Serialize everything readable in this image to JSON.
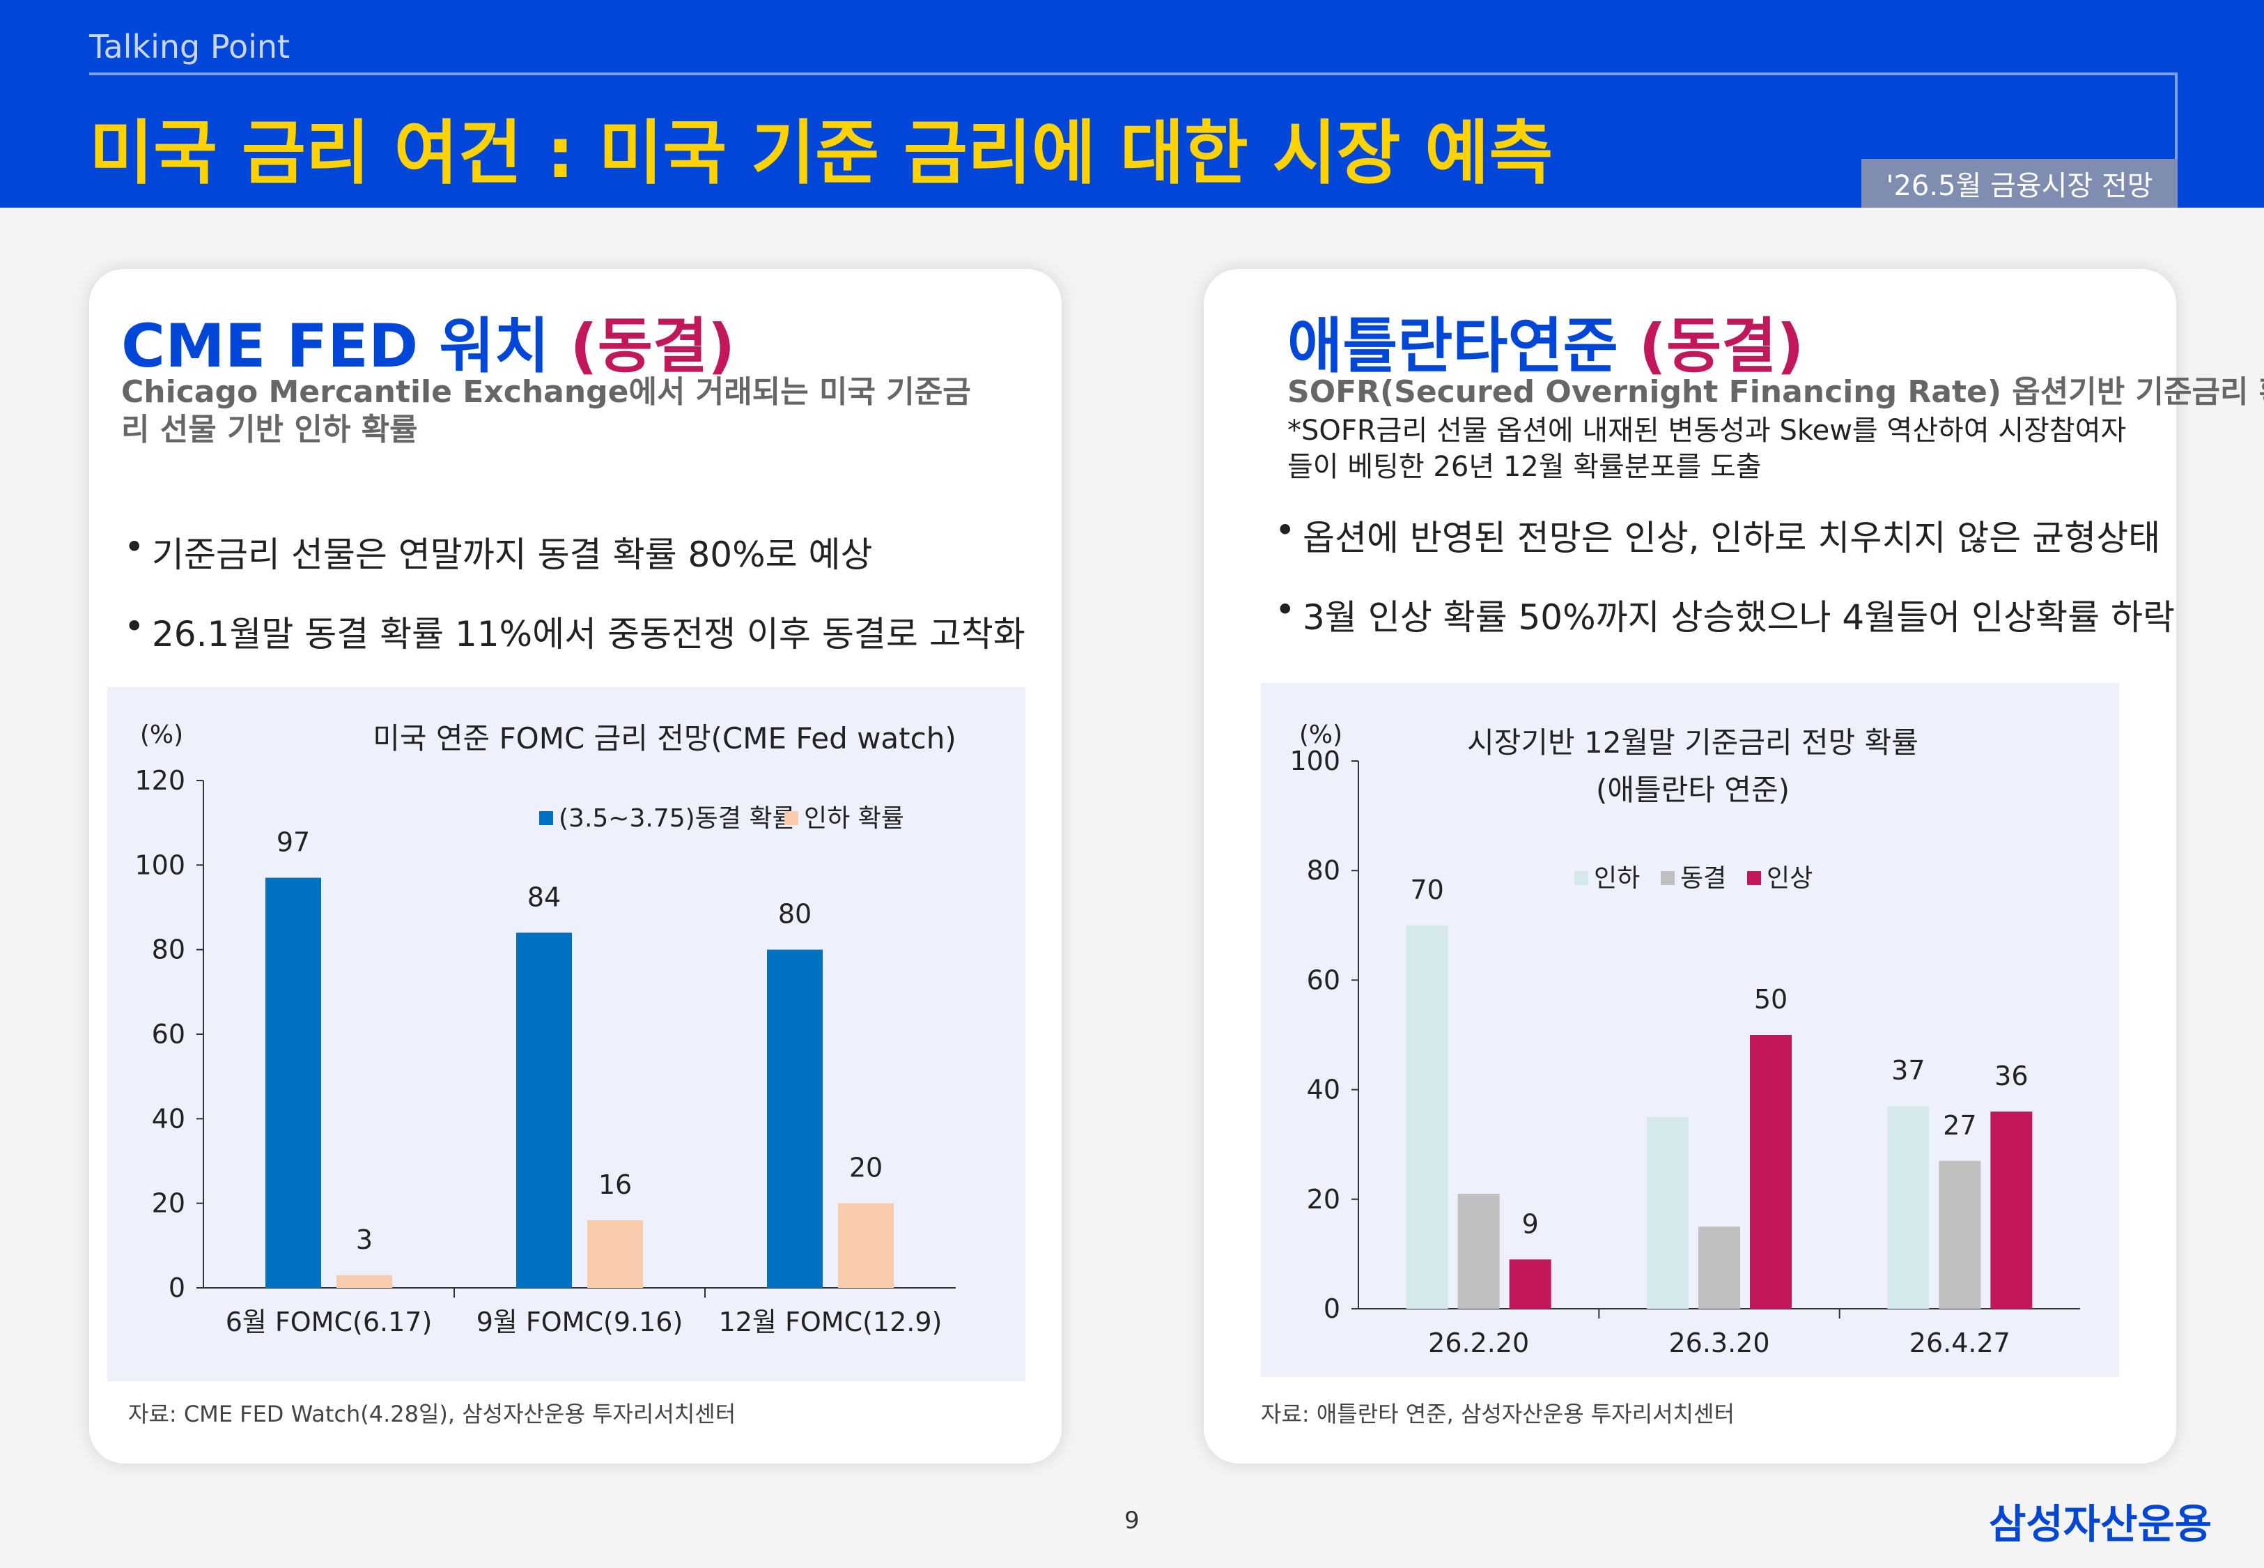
{
  "header": {
    "section": "Talking Point",
    "title": "미국 금리 여건 : 미국 기준 금리에 대한 시장 예측",
    "badge": "'26.5월 금융시장 전망"
  },
  "left_panel": {
    "title_main": "CME FED 워치 ",
    "title_status": "(동결)",
    "subtitle": "Chicago Mercantile Exchange에서  거래되는 미국 기준금리 선물 기반 인하 확률",
    "bullets": [
      "기준금리 선물은 연말까지 동결 확률 80%로 예상",
      "26.1월말 동결 확률 11%에서 중동전쟁 이후 동결로 고착화"
    ],
    "source": "자료: CME FED Watch(4.28일), 삼성자산운용 투자리서치센터"
  },
  "right_panel": {
    "title_main": "애틀란타연준 ",
    "title_status": "(동결)",
    "subtitle": "SOFR(Secured Overnight Financing Rate) 옵션기반 기준금리 확률",
    "note": "*SOFR금리 선물 옵션에 내재된 변동성과 Skew를 역산하여 시장참여자들이 베팅한 26년 12월 확률분포를 도출",
    "bullets": [
      "옵션에 반영된 전망은 인상, 인하로 치우치지 않은  균형상태",
      "3월 인상 확률 50%까지 상승했으나 4월들어 인상확률 하락"
    ],
    "source": "자료: 애틀란타 연준, 삼성자산운용 투자리서치센터"
  },
  "footer": {
    "page": "9",
    "logo": "삼성자산운용"
  },
  "chart_data": [
    {
      "type": "bar",
      "title": "미국 연준 FOMC 금리 전망(CME Fed watch)",
      "ylabel": "(%)",
      "ylim": [
        0,
        120
      ],
      "yticks": [
        0,
        20,
        40,
        60,
        80,
        100,
        120
      ],
      "categories": [
        "6월 FOMC(6.17)",
        "9월 FOMC(9.16)",
        "12월 FOMC(12.9)"
      ],
      "series": [
        {
          "name": "(3.5~3.75)동결 확률",
          "color": "#0070c0",
          "values": [
            97,
            84,
            80
          ]
        },
        {
          "name": "인하 확률",
          "color": "#f8cbad",
          "values": [
            3,
            16,
            20
          ]
        }
      ],
      "legend": "top-right",
      "grid": false
    },
    {
      "type": "bar",
      "title": "시장기반 12월말 기준금리 전망 확률",
      "subtitle": "(애틀란타 연준)",
      "ylabel": "(%)",
      "ylim": [
        0,
        100
      ],
      "yticks": [
        0,
        20,
        40,
        60,
        80,
        100
      ],
      "categories": [
        "26.2.20",
        "26.3.20",
        "26.4.27"
      ],
      "series": [
        {
          "name": "인하",
          "color": "#d5e8ec",
          "values": [
            70,
            35,
            37
          ],
          "labels": [
            "70",
            "",
            "37"
          ]
        },
        {
          "name": "동결",
          "color": "#bfbfbf",
          "values": [
            21,
            15,
            27
          ],
          "labels": [
            "",
            "",
            "27"
          ]
        },
        {
          "name": "인상",
          "color": "#c2185b",
          "values": [
            9,
            50,
            36
          ],
          "labels": [
            "9",
            "50",
            "36"
          ]
        }
      ],
      "legend": "top-center",
      "grid": false
    }
  ]
}
